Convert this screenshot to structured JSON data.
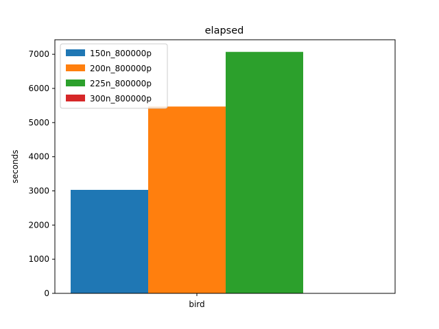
{
  "chart_data": {
    "type": "bar",
    "title": "elapsed",
    "xlabel": "",
    "ylabel": "seconds",
    "categories": [
      "bird"
    ],
    "series": [
      {
        "name": "150n_800000p",
        "values": [
          3030
        ],
        "color": "#1f77b4"
      },
      {
        "name": "200n_800000p",
        "values": [
          5470
        ],
        "color": "#ff7f0e"
      },
      {
        "name": "225n_800000p",
        "values": [
          7070
        ],
        "color": "#2ca02c"
      },
      {
        "name": "300n_800000p",
        "values": [
          0
        ],
        "color": "#d62728"
      }
    ],
    "ylim": [
      0,
      7425
    ],
    "yticks": [
      0,
      1000,
      2000,
      3000,
      4000,
      5000,
      6000,
      7000
    ],
    "grid": false,
    "legend_position": "upper-left"
  }
}
